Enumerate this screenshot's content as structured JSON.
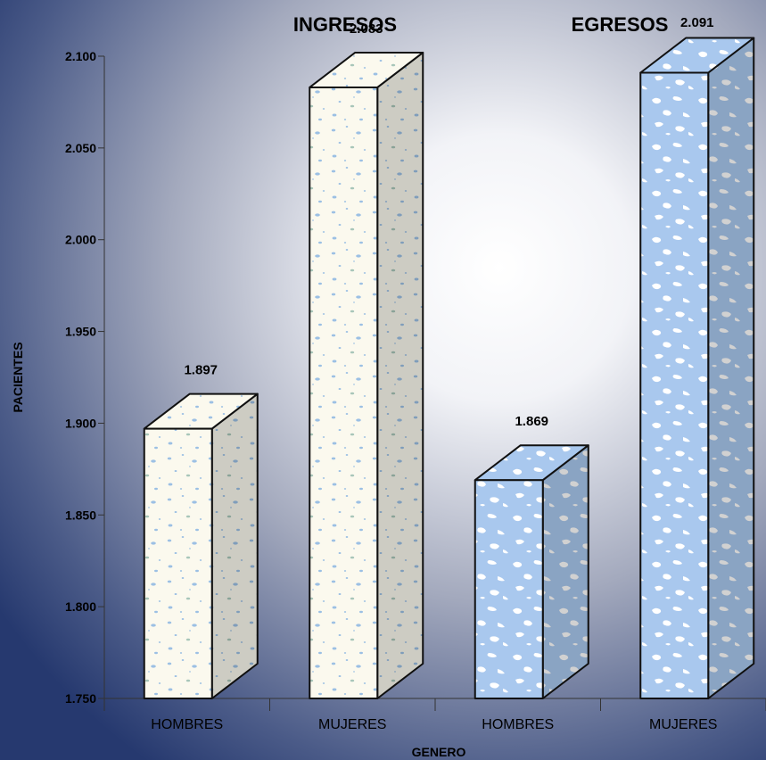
{
  "chart_data": {
    "type": "bar",
    "style": "3d-textured-columns",
    "categories": [
      "HOMBRES",
      "MUJERES",
      "HOMBRES",
      "MUJERES"
    ],
    "groups": [
      "INGRESOS",
      "EGRESOS"
    ],
    "values": [
      1897,
      2083,
      1869,
      2091
    ],
    "value_labels": [
      "1.897",
      "2.083",
      "1.869",
      "2.091"
    ],
    "group_of_bar": [
      0,
      0,
      1,
      1
    ],
    "xlabel": "GENERO",
    "ylabel": "PACIENTES",
    "ylim": [
      1750,
      2100
    ],
    "yticks": [
      1750,
      1800,
      1850,
      1900,
      1950,
      2000,
      2050,
      2100
    ],
    "ytick_labels": [
      "1.750",
      "1.800",
      "1.850",
      "1.900",
      "1.950",
      "2.000",
      "2.050",
      "2.100"
    ],
    "grid": false,
    "legend": "none",
    "colors": {
      "ingresos_fill": "#fbf9ee",
      "ingresos_speckle": "#9cc0e4",
      "egresos_fill": "#a9c8ee",
      "egresos_speckle": "#ffffff",
      "background_dark": "#26396f",
      "background_light": "#ffffff",
      "axis": "#333333",
      "text": "#000000"
    }
  }
}
